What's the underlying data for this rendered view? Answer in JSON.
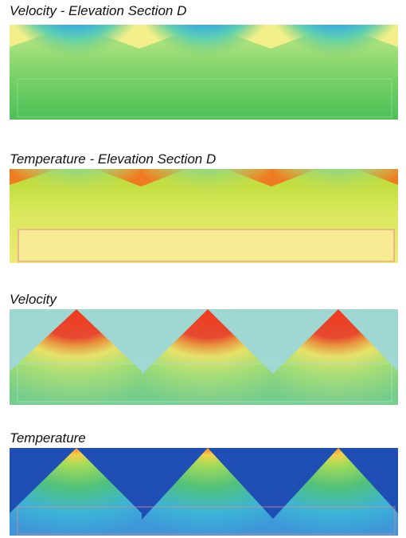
{
  "panels": [
    {
      "id": "velocity-section-d",
      "title": "Velocity - Elevation Section D",
      "variable": "velocity",
      "view": "elevation-section"
    },
    {
      "id": "temperature-section-d",
      "title": "Temperature - Elevation Section D",
      "variable": "temperature",
      "view": "elevation-section"
    },
    {
      "id": "velocity-cones",
      "title": "Velocity",
      "variable": "velocity",
      "view": "cone-section"
    },
    {
      "id": "temperature-cones",
      "title": "Temperature",
      "variable": "temperature",
      "view": "cone-section"
    }
  ],
  "diffuser_count": 3,
  "colors": {
    "deep_blue": "#1f4fb4",
    "light_cyan": "#9fd8d2",
    "green": "#55c94f",
    "yellow": "#f4ef8a",
    "orange": "#ef7a24",
    "red": "#ef3a1e"
  }
}
